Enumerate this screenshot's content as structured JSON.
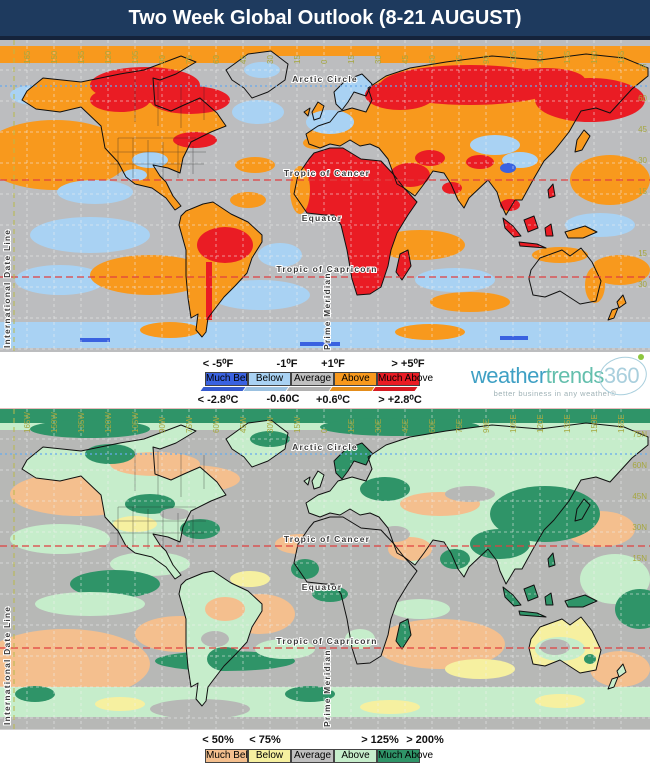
{
  "title": "Two Week Global Outlook (8-21 AUGUST)",
  "logo": {
    "weather": "weather",
    "trends": "trends",
    "num": "360",
    "tagline": "better business in any weather®"
  },
  "colors": {
    "title_bar_bg": "#1e3a5e",
    "title_text": "#ffffff",
    "ocean_gray": "#bcbdbf",
    "tick_label": "#a6a73e",
    "logo_weather": "#3fa0c4",
    "logo_trends": "#64bfad",
    "logo_360": "#a9cfdd",
    "logo_dot": "#8dc63f"
  },
  "temperature_legend": {
    "f_labels": [
      "< -5⁰F",
      "-1⁰F",
      "+1⁰F",
      "> +5⁰F"
    ],
    "c_labels": [
      "< -2.8⁰C",
      "-0.60C",
      "+0.6⁰C",
      "> +2.8⁰C"
    ],
    "categories": [
      {
        "label": "Much Below",
        "color": "#3a62e0"
      },
      {
        "label": "Below",
        "color": "#a9d2f3"
      },
      {
        "label": "Average",
        "color": "#c0c0c0"
      },
      {
        "label": "Above",
        "color": "#f8991d"
      },
      {
        "label": "Much Above",
        "color": "#ea1c24"
      }
    ]
  },
  "precipitation_legend": {
    "pct_labels": [
      "< 50%",
      "< 75%",
      "> 125%",
      "> 200%"
    ],
    "categories": [
      {
        "label": "Much Below",
        "color": "#f4bf8e"
      },
      {
        "label": "Below",
        "color": "#f6f0a0"
      },
      {
        "label": "Average",
        "color": "#c0c0c0"
      },
      {
        "label": "Above",
        "color": "#c6edcb"
      },
      {
        "label": "Much Above",
        "color": "#2f9468"
      }
    ]
  },
  "map_labels": {
    "arctic_circle": "Arctic Circle",
    "tropic_of_cancer": "Tropic of Cancer",
    "equator": "Equator",
    "tropic_of_capricorn": "Tropic of Capricorn",
    "prime_meridian": "Prime Meridian",
    "international_date_line": "International Date Line"
  },
  "top_map": {
    "lon_labels": [
      "165",
      "150",
      "135",
      "120",
      "105",
      "90",
      "75",
      "60",
      "45",
      "30",
      "15",
      "0",
      "15",
      "30",
      "45",
      "60",
      "75",
      "90",
      "105",
      "120",
      "135",
      "150",
      "165"
    ],
    "lat_labels": [
      "75",
      "60",
      "45",
      "30",
      "15",
      "15",
      "30"
    ]
  },
  "bottom_map": {
    "lon_labels": [
      "165W",
      "150W",
      "135W",
      "120W",
      "105W",
      "90W",
      "75W",
      "60W",
      "45W",
      "30W",
      "15W",
      "0",
      "15E",
      "30E",
      "45E",
      "60E",
      "75E",
      "90E",
      "105E",
      "120E",
      "135E",
      "150E",
      "165E"
    ],
    "lat_labels": [
      "75N",
      "60N",
      "45N",
      "30N",
      "15N"
    ]
  }
}
